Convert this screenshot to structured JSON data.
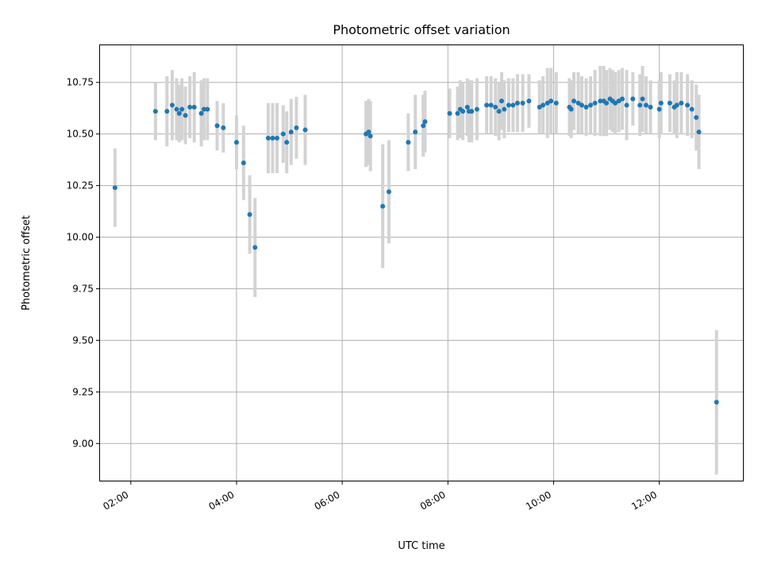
{
  "chart_data": {
    "type": "scatter",
    "title": "Photometric offset variation",
    "xlabel": "UTC time",
    "ylabel": "Photometric offset",
    "grid": true,
    "x_unit": "UTC time (HH:MM)",
    "xlim": [
      "01:25",
      "13:35"
    ],
    "ylim": [
      8.82,
      10.93
    ],
    "x_ticks": [
      "02:00",
      "04:00",
      "06:00",
      "08:00",
      "10:00",
      "12:00"
    ],
    "y_ticks": [
      9.0,
      9.25,
      9.5,
      9.75,
      10.0,
      10.25,
      10.5,
      10.75
    ],
    "y_tick_labels": [
      "9.00",
      "9.25",
      "9.50",
      "9.75",
      "10.00",
      "10.25",
      "10.50",
      "10.75"
    ],
    "colors": {
      "points": "#1f77b4",
      "errorbars": "#d3d3d3"
    },
    "series": [
      {
        "x": [
          "01:42",
          "02:28",
          "02:41",
          "02:47",
          "02:52",
          "02:55",
          "02:58",
          "03:02",
          "03:07",
          "03:12",
          "03:20",
          "03:23",
          "03:27",
          "03:38",
          "03:45",
          "04:00",
          "04:08",
          "04:15",
          "04:21",
          "04:36",
          "04:41",
          "04:46",
          "04:53",
          "04:57",
          "05:02",
          "05:08",
          "05:18",
          "06:27",
          "06:30",
          "06:32",
          "06:46",
          "06:53",
          "07:15",
          "07:23",
          "07:32",
          "07:34",
          "08:02",
          "08:11",
          "08:14",
          "08:17",
          "08:22",
          "08:24",
          "08:27",
          "08:33",
          "08:44",
          "08:49",
          "08:54",
          "08:58",
          "09:01",
          "09:04",
          "09:09",
          "09:14",
          "09:19",
          "09:25",
          "09:32",
          "09:44",
          "09:48",
          "09:53",
          "09:57",
          "10:03",
          "10:18",
          "10:20",
          "10:23",
          "10:28",
          "10:32",
          "10:37",
          "10:42",
          "10:47",
          "10:53",
          "10:57",
          "11:00",
          "11:04",
          "11:07",
          "11:10",
          "11:14",
          "11:18",
          "11:23",
          "11:30",
          "11:38",
          "11:41",
          "11:45",
          "11:50",
          "12:00",
          "12:02",
          "12:12",
          "12:17",
          "12:20",
          "12:25",
          "12:32",
          "12:37",
          "12:42",
          "12:45",
          "13:05"
        ],
        "y": [
          10.24,
          10.61,
          10.61,
          10.64,
          10.62,
          10.6,
          10.62,
          10.59,
          10.63,
          10.63,
          10.6,
          10.62,
          10.62,
          10.54,
          10.53,
          10.46,
          10.36,
          10.11,
          9.95,
          10.48,
          10.48,
          10.48,
          10.5,
          10.46,
          10.51,
          10.53,
          10.52,
          10.5,
          10.51,
          10.49,
          10.15,
          10.22,
          10.46,
          10.51,
          10.54,
          10.56,
          10.6,
          10.6,
          10.62,
          10.61,
          10.63,
          10.61,
          10.61,
          10.62,
          10.64,
          10.64,
          10.63,
          10.61,
          10.66,
          10.62,
          10.64,
          10.64,
          10.65,
          10.65,
          10.66,
          10.63,
          10.64,
          10.65,
          10.66,
          10.65,
          10.63,
          10.62,
          10.66,
          10.65,
          10.64,
          10.63,
          10.64,
          10.65,
          10.66,
          10.66,
          10.65,
          10.67,
          10.66,
          10.65,
          10.66,
          10.67,
          10.64,
          10.67,
          10.64,
          10.67,
          10.64,
          10.63,
          10.62,
          10.65,
          10.65,
          10.63,
          10.64,
          10.65,
          10.64,
          10.62,
          10.58,
          10.51,
          9.2
        ],
        "err": [
          0.19,
          0.14,
          0.17,
          0.17,
          0.15,
          0.14,
          0.15,
          0.14,
          0.15,
          0.17,
          0.16,
          0.15,
          0.15,
          0.12,
          0.12,
          0.13,
          0.18,
          0.19,
          0.24,
          0.17,
          0.17,
          0.17,
          0.14,
          0.15,
          0.16,
          0.15,
          0.17,
          0.16,
          0.16,
          0.17,
          0.3,
          0.25,
          0.14,
          0.18,
          0.15,
          0.15,
          0.12,
          0.13,
          0.14,
          0.14,
          0.14,
          0.15,
          0.15,
          0.15,
          0.14,
          0.14,
          0.14,
          0.14,
          0.14,
          0.14,
          0.13,
          0.13,
          0.14,
          0.14,
          0.13,
          0.13,
          0.14,
          0.17,
          0.16,
          0.15,
          0.14,
          0.14,
          0.14,
          0.15,
          0.14,
          0.14,
          0.14,
          0.16,
          0.17,
          0.17,
          0.16,
          0.15,
          0.15,
          0.15,
          0.15,
          0.15,
          0.17,
          0.13,
          0.15,
          0.16,
          0.14,
          0.13,
          0.14,
          0.15,
          0.14,
          0.13,
          0.16,
          0.15,
          0.15,
          0.14,
          0.16,
          0.18,
          0.35
        ]
      }
    ]
  }
}
